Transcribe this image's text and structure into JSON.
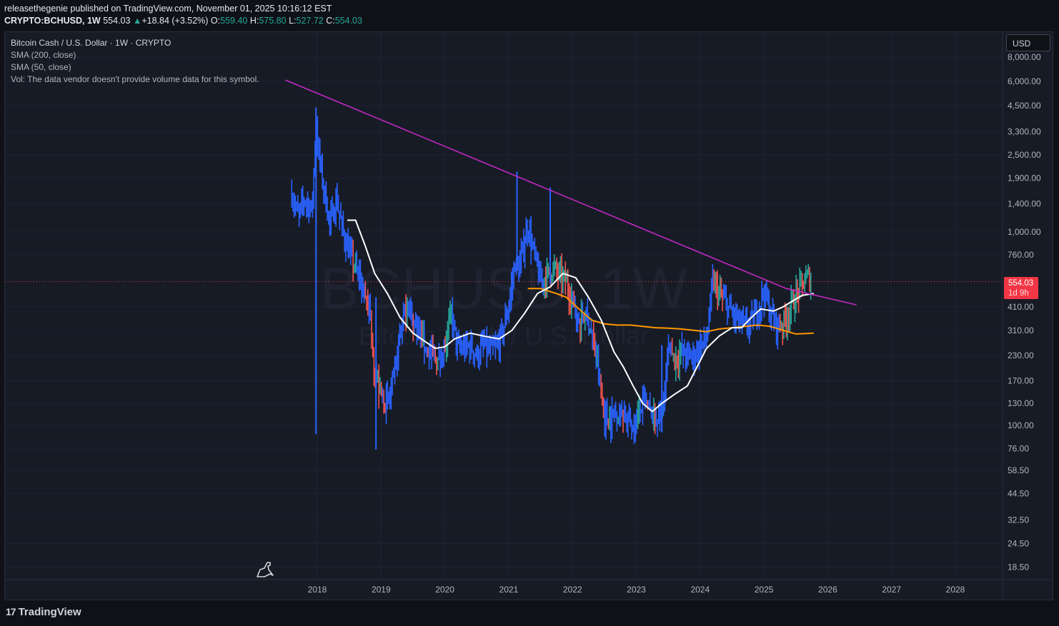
{
  "header": {
    "line1": "releasethegenie published on TradingView.com, November 01, 2025 10:16:12 EST",
    "symbol": "CRYPTO:BCHUSD, 1W",
    "price": "554.03",
    "change_icon": "up-triangle-icon",
    "change": "+18.84 (+3.52%)",
    "o_label": "O:",
    "o": "559.40",
    "h_label": "H:",
    "h": "575.80",
    "l_label": "L:",
    "l": "527.72",
    "c_label": "C:",
    "c": "554.03"
  },
  "legend": {
    "title": "Bitcoin Cash / U.S. Dollar · 1W · CRYPTO",
    "sma200": "SMA (200, close)",
    "sma50": "SMA (50, close)",
    "vol": "Vol: The data vendor doesn't provide volume data for this symbol."
  },
  "watermark": {
    "ticker": "BCHUSD, 1W",
    "name": "Bitcoin Cash / U.S. Dollar"
  },
  "currency_button": "USD",
  "price_badge": {
    "price": "554.03",
    "countdown": "1d 9h"
  },
  "footer": {
    "brand": "TradingView",
    "logo_icon": "tradingview-logo-icon"
  },
  "colors": {
    "bull": "#26a69a",
    "bear": "#ef5350",
    "blue": "#2962ff",
    "sma200": "#ff9800",
    "sma50": "#ffffff",
    "trendline": "#c228c2",
    "price_line": "#f23645"
  },
  "chart_data": {
    "type": "line",
    "scale": "log",
    "x_ticks": [
      "2018",
      "2019",
      "2020",
      "2021",
      "2022",
      "2023",
      "2024",
      "2025",
      "2026",
      "2027",
      "2028"
    ],
    "y_ticks": [
      "8,000.00",
      "6,000.00",
      "4,500.00",
      "3,300.00",
      "2,500.00",
      "1,900.00",
      "1,400.00",
      "1,000.00",
      "760.00",
      "410.00",
      "310.00",
      "230.00",
      "170.00",
      "130.00",
      "100.00",
      "76.00",
      "58.50",
      "44.50",
      "32.50",
      "24.50",
      "18.50"
    ],
    "last_price": 554.03,
    "series": [
      {
        "name": "BCHUSD 1W",
        "points": [
          [
            2017.6,
            1600
          ],
          [
            2017.7,
            1200
          ],
          [
            2017.8,
            1500
          ],
          [
            2017.92,
            1300
          ],
          [
            2017.98,
            3800
          ],
          [
            2018.0,
            2900
          ],
          [
            2018.1,
            1700
          ],
          [
            2018.2,
            1100
          ],
          [
            2018.3,
            1500
          ],
          [
            2018.4,
            1000
          ],
          [
            2018.5,
            790
          ],
          [
            2018.6,
            650
          ],
          [
            2018.7,
            530
          ],
          [
            2018.8,
            420
          ],
          [
            2018.9,
            200
          ],
          [
            2019.0,
            140
          ],
          [
            2019.1,
            130
          ],
          [
            2019.2,
            170
          ],
          [
            2019.3,
            300
          ],
          [
            2019.4,
            430
          ],
          [
            2019.5,
            340
          ],
          [
            2019.6,
            300
          ],
          [
            2019.7,
            250
          ],
          [
            2019.8,
            230
          ],
          [
            2019.9,
            210
          ],
          [
            2020.0,
            260
          ],
          [
            2020.1,
            380
          ],
          [
            2020.2,
            250
          ],
          [
            2020.3,
            250
          ],
          [
            2020.4,
            260
          ],
          [
            2020.5,
            230
          ],
          [
            2020.6,
            260
          ],
          [
            2020.7,
            240
          ],
          [
            2020.8,
            250
          ],
          [
            2020.9,
            300
          ],
          [
            2021.0,
            420
          ],
          [
            2021.1,
            700
          ],
          [
            2021.15,
            620
          ],
          [
            2021.3,
            1100
          ],
          [
            2021.35,
            900
          ],
          [
            2021.5,
            550
          ],
          [
            2021.6,
            600
          ],
          [
            2021.7,
            650
          ],
          [
            2021.8,
            600
          ],
          [
            2021.9,
            550
          ],
          [
            2022.0,
            450
          ],
          [
            2022.1,
            330
          ],
          [
            2022.2,
            380
          ],
          [
            2022.3,
            300
          ],
          [
            2022.4,
            200
          ],
          [
            2022.5,
            110
          ],
          [
            2022.6,
            110
          ],
          [
            2022.7,
            120
          ],
          [
            2022.8,
            115
          ],
          [
            2022.9,
            100
          ],
          [
            2023.0,
            105
          ],
          [
            2023.1,
            130
          ],
          [
            2023.2,
            120
          ],
          [
            2023.3,
            110
          ],
          [
            2023.4,
            115
          ],
          [
            2023.5,
            250
          ],
          [
            2023.6,
            220
          ],
          [
            2023.7,
            240
          ],
          [
            2023.8,
            230
          ],
          [
            2023.9,
            230
          ],
          [
            2024.0,
            260
          ],
          [
            2024.1,
            280
          ],
          [
            2024.2,
            560
          ],
          [
            2024.3,
            480
          ],
          [
            2024.4,
            430
          ],
          [
            2024.5,
            380
          ],
          [
            2024.6,
            350
          ],
          [
            2024.7,
            330
          ],
          [
            2024.8,
            340
          ],
          [
            2024.9,
            400
          ],
          [
            2025.0,
            500
          ],
          [
            2025.1,
            380
          ],
          [
            2025.2,
            330
          ],
          [
            2025.3,
            340
          ],
          [
            2025.4,
            400
          ],
          [
            2025.5,
            470
          ],
          [
            2025.6,
            540
          ],
          [
            2025.7,
            590
          ],
          [
            2025.75,
            554
          ]
        ]
      },
      {
        "name": "SMA (50, close)",
        "points": [
          [
            2018.47,
            1150
          ],
          [
            2018.6,
            1150
          ],
          [
            2018.75,
            850
          ],
          [
            2018.9,
            610
          ],
          [
            2019.1,
            480
          ],
          [
            2019.3,
            360
          ],
          [
            2019.5,
            300
          ],
          [
            2019.7,
            270
          ],
          [
            2019.85,
            250
          ],
          [
            2020.0,
            255
          ],
          [
            2020.15,
            280
          ],
          [
            2020.4,
            300
          ],
          [
            2020.6,
            290
          ],
          [
            2020.85,
            280
          ],
          [
            2021.05,
            310
          ],
          [
            2021.25,
            380
          ],
          [
            2021.45,
            480
          ],
          [
            2021.65,
            520
          ],
          [
            2021.85,
            610
          ],
          [
            2022.05,
            580
          ],
          [
            2022.25,
            460
          ],
          [
            2022.45,
            350
          ],
          [
            2022.65,
            240
          ],
          [
            2022.8,
            200
          ],
          [
            2022.95,
            160
          ],
          [
            2023.1,
            130
          ],
          [
            2023.25,
            118
          ],
          [
            2023.4,
            130
          ],
          [
            2023.6,
            145
          ],
          [
            2023.8,
            160
          ],
          [
            2023.95,
            200
          ],
          [
            2024.1,
            250
          ],
          [
            2024.3,
            290
          ],
          [
            2024.5,
            320
          ],
          [
            2024.65,
            320
          ],
          [
            2024.8,
            360
          ],
          [
            2024.95,
            400
          ],
          [
            2025.15,
            390
          ],
          [
            2025.3,
            410
          ],
          [
            2025.45,
            440
          ],
          [
            2025.6,
            470
          ],
          [
            2025.78,
            480
          ]
        ]
      },
      {
        "name": "SMA (200, close)",
        "points": [
          [
            2021.3,
            510
          ],
          [
            2021.5,
            510
          ],
          [
            2021.75,
            480
          ],
          [
            2021.9,
            460
          ],
          [
            2022.1,
            400
          ],
          [
            2022.3,
            350
          ],
          [
            2022.5,
            335
          ],
          [
            2022.7,
            330
          ],
          [
            2022.9,
            330
          ],
          [
            2023.1,
            325
          ],
          [
            2023.3,
            320
          ],
          [
            2023.5,
            318
          ],
          [
            2023.7,
            315
          ],
          [
            2023.9,
            310
          ],
          [
            2024.1,
            305
          ],
          [
            2024.3,
            315
          ],
          [
            2024.5,
            320
          ],
          [
            2024.7,
            325
          ],
          [
            2024.9,
            330
          ],
          [
            2025.1,
            325
          ],
          [
            2025.3,
            310
          ],
          [
            2025.5,
            297
          ],
          [
            2025.78,
            300
          ]
        ]
      },
      {
        "name": "Trendline",
        "points": [
          [
            2017.5,
            6100
          ],
          [
            2025.35,
            510
          ],
          [
            2026.45,
            420
          ]
        ]
      }
    ]
  }
}
